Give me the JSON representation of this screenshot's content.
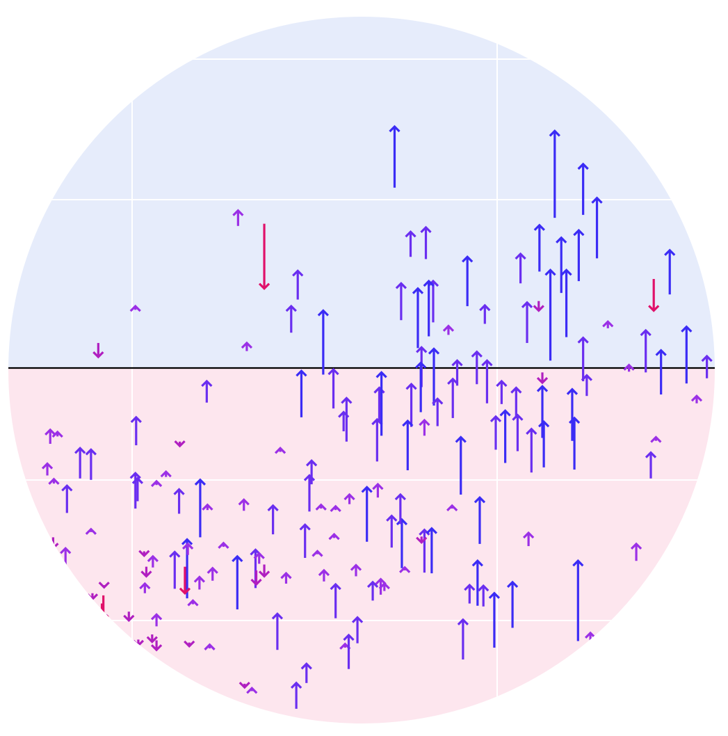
{
  "chart_data": {
    "type": "vector-field",
    "mark": "arrow",
    "title": "",
    "xlabel": "",
    "ylabel": "",
    "grid": true,
    "legend": "none",
    "xlim": [
      0,
      100
    ],
    "ylim": [
      -50,
      50
    ],
    "baseline_y": 0,
    "colors": {
      "upper_region": "#e6ecfb",
      "lower_region": "#fde6ee",
      "grid": "#ffffff",
      "baseline": "#000000",
      "arrow_up_long": "#3b2cf5",
      "arrow_up_mid": "#6a2ef0",
      "arrow_up_short": "#9b30e6",
      "arrow_down_short": "#b01fc0",
      "arrow_down_long": "#e0116a"
    },
    "arrows": [
      {
        "x": 54.2,
        "y": 24.5,
        "dy": 8.3
      },
      {
        "x": 76.2,
        "y": 20.4,
        "dy": 11.8
      },
      {
        "x": 80.1,
        "y": 20.8,
        "dy": 6.9
      },
      {
        "x": 82.0,
        "y": 14.9,
        "dy": 8.2
      },
      {
        "x": 32.7,
        "y": 19.3,
        "dy": 2.1
      },
      {
        "x": 36.3,
        "y": 19.6,
        "dy": -8.8
      },
      {
        "x": 40.9,
        "y": 9.3,
        "dy": 3.9
      },
      {
        "x": 56.4,
        "y": 15.1,
        "dy": 3.4
      },
      {
        "x": 58.5,
        "y": 14.8,
        "dy": 4.3
      },
      {
        "x": 55.1,
        "y": 6.5,
        "dy": 5.0
      },
      {
        "x": 59.5,
        "y": 6.2,
        "dy": 5.6
      },
      {
        "x": 64.2,
        "y": 8.4,
        "dy": 6.7
      },
      {
        "x": 71.5,
        "y": 11.5,
        "dy": 4.0
      },
      {
        "x": 74.1,
        "y": 13.1,
        "dy": 6.3
      },
      {
        "x": 77.1,
        "y": 10.2,
        "dy": 7.5
      },
      {
        "x": 79.5,
        "y": 11.8,
        "dy": 6.9
      },
      {
        "x": 92.0,
        "y": 10.0,
        "dy": 6.0
      },
      {
        "x": 89.8,
        "y": 12.1,
        "dy": -4.3
      },
      {
        "x": 40.0,
        "y": 4.8,
        "dy": 3.6
      },
      {
        "x": 44.4,
        "y": -0.9,
        "dy": 8.7
      },
      {
        "x": 57.4,
        "y": 2.7,
        "dy": 8.1
      },
      {
        "x": 58.9,
        "y": 4.3,
        "dy": 7.5
      },
      {
        "x": 66.6,
        "y": 6.0,
        "dy": 2.5
      },
      {
        "x": 72.4,
        "y": 3.4,
        "dy": 5.5
      },
      {
        "x": 75.6,
        "y": 1.0,
        "dy": 12.3
      },
      {
        "x": 77.8,
        "y": 4.2,
        "dy": 9.1
      },
      {
        "x": 80.1,
        "y": -1.8,
        "dy": 5.9
      },
      {
        "x": 88.7,
        "y": -0.6,
        "dy": 5.7
      },
      {
        "x": 90.8,
        "y": -3.6,
        "dy": 6.0
      },
      {
        "x": 94.3,
        "y": -2.1,
        "dy": 7.7
      },
      {
        "x": 97.1,
        "y": -1.4,
        "dy": 3.0
      },
      {
        "x": 61.6,
        "y": 4.5,
        "dy": 1.2
      },
      {
        "x": 83.5,
        "y": 5.4,
        "dy": 0.9
      },
      {
        "x": 86.4,
        "y": -0.5,
        "dy": 0.9
      },
      {
        "x": 33.9,
        "y": 2.3,
        "dy": 1.1
      },
      {
        "x": 18.6,
        "y": 7.9,
        "dy": 0.5
      },
      {
        "x": 13.5,
        "y": 3.4,
        "dy": -1.9
      },
      {
        "x": 74.0,
        "y": 9.1,
        "dy": -1.3
      },
      {
        "x": 74.5,
        "y": -0.6,
        "dy": -1.4
      },
      {
        "x": 57.9,
        "y": -2.6,
        "dy": 5.4
      },
      {
        "x": 59.6,
        "y": -5.1,
        "dy": 7.7
      },
      {
        "x": 62.8,
        "y": -2.4,
        "dy": 3.4
      },
      {
        "x": 65.5,
        "y": -2.2,
        "dy": 4.4
      },
      {
        "x": 66.9,
        "y": -4.8,
        "dy": 5.8
      },
      {
        "x": 28.4,
        "y": -4.7,
        "dy": 2.9
      },
      {
        "x": 41.4,
        "y": -6.7,
        "dy": 6.3
      },
      {
        "x": 45.8,
        "y": -5.5,
        "dy": 5.3
      },
      {
        "x": 47.2,
        "y": -8.6,
        "dy": 2.6
      },
      {
        "x": 52.1,
        "y": -7.2,
        "dy": 4.5
      },
      {
        "x": 56.5,
        "y": -8.0,
        "dy": 5.8
      },
      {
        "x": 57.8,
        "y": -6.0,
        "dy": 6.7
      },
      {
        "x": 60.1,
        "y": -7.9,
        "dy": 3.7
      },
      {
        "x": 62.2,
        "y": -6.8,
        "dy": 5.3
      },
      {
        "x": 68.9,
        "y": -4.9,
        "dy": 3.1
      },
      {
        "x": 70.9,
        "y": -6.8,
        "dy": 4.1
      },
      {
        "x": 74.5,
        "y": -9.5,
        "dy": 7.0
      },
      {
        "x": 78.6,
        "y": -9.9,
        "dy": 7.0
      },
      {
        "x": 80.6,
        "y": -3.8,
        "dy": 2.8
      },
      {
        "x": 95.7,
        "y": -4.8,
        "dy": 1.0
      },
      {
        "x": 58.3,
        "y": -9.2,
        "dy": 2.1
      },
      {
        "x": 68.1,
        "y": -11.1,
        "dy": 4.5
      },
      {
        "x": 71.1,
        "y": -11.3,
        "dy": 4.9
      },
      {
        "x": 69.4,
        "y": -12.9,
        "dy": 7.1
      },
      {
        "x": 73.0,
        "y": -14.2,
        "dy": 5.9
      },
      {
        "x": 74.7,
        "y": -13.5,
        "dy": 6.2
      },
      {
        "x": 78.9,
        "y": -13.8,
        "dy": 7.0
      },
      {
        "x": 63.3,
        "y": -17.2,
        "dy": 7.8
      },
      {
        "x": 89.4,
        "y": -15.0,
        "dy": 3.5
      },
      {
        "x": 90.1,
        "y": -9.9,
        "dy": 0.5
      },
      {
        "x": 51.8,
        "y": -12.7,
        "dy": 5.7
      },
      {
        "x": 52.4,
        "y": -9.2,
        "dy": 8.6
      },
      {
        "x": 56.0,
        "y": -13.9,
        "dy": 6.7
      },
      {
        "x": 47.6,
        "y": -10.0,
        "dy": 5.9
      },
      {
        "x": 42.8,
        "y": -15.8,
        "dy": 3.2
      },
      {
        "x": 6.9,
        "y": -10.3,
        "dy": 1.9
      },
      {
        "x": 7.9,
        "y": -9.3,
        "dy": 0.6
      },
      {
        "x": 11.0,
        "y": -15.0,
        "dy": 4.1
      },
      {
        "x": 12.5,
        "y": -15.2,
        "dy": 4.1
      },
      {
        "x": 18.7,
        "y": -10.5,
        "dy": 3.8
      },
      {
        "x": 18.6,
        "y": -19.1,
        "dy": 4.8
      },
      {
        "x": 6.5,
        "y": -14.6,
        "dy": 1.6
      },
      {
        "x": 7.4,
        "y": -15.7,
        "dy": 0.6
      },
      {
        "x": 9.2,
        "y": -19.7,
        "dy": 3.7
      },
      {
        "x": 18.9,
        "y": -18.1,
        "dy": 3.1
      },
      {
        "x": 21.5,
        "y": -15.9,
        "dy": 0.5
      },
      {
        "x": 22.8,
        "y": -14.8,
        "dy": 0.7
      },
      {
        "x": 24.7,
        "y": -10.0,
        "dy": -0.6
      },
      {
        "x": 38.5,
        "y": -11.4,
        "dy": 0.5
      },
      {
        "x": 27.5,
        "y": -23.0,
        "dy": 7.8
      },
      {
        "x": 24.6,
        "y": -19.8,
        "dy": 3.3
      },
      {
        "x": 28.5,
        "y": -19.3,
        "dy": 0.7
      },
      {
        "x": 33.5,
        "y": -19.4,
        "dy": 1.5
      },
      {
        "x": 37.5,
        "y": -22.6,
        "dy": 3.9
      },
      {
        "x": 42.5,
        "y": -19.5,
        "dy": 4.9
      },
      {
        "x": 44.1,
        "y": -19.1,
        "dy": 0.5
      },
      {
        "x": 46.1,
        "y": -19.3,
        "dy": 0.5
      },
      {
        "x": 48.0,
        "y": -18.5,
        "dy": 1.3
      },
      {
        "x": 50.4,
        "y": -23.6,
        "dy": 7.4
      },
      {
        "x": 51.9,
        "y": -17.6,
        "dy": 1.8
      },
      {
        "x": 53.8,
        "y": -24.4,
        "dy": 4.3
      },
      {
        "x": 55.2,
        "y": -27.2,
        "dy": 6.6
      },
      {
        "x": 55.0,
        "y": -21.2,
        "dy": 4.0
      },
      {
        "x": 58.3,
        "y": -27.8,
        "dy": 5.8
      },
      {
        "x": 59.3,
        "y": -27.9,
        "dy": 6.1
      },
      {
        "x": 62.1,
        "y": -19.1,
        "dy": 0.4
      },
      {
        "x": 65.9,
        "y": -23.9,
        "dy": 6.3
      },
      {
        "x": 72.6,
        "y": -24.2,
        "dy": 1.8
      },
      {
        "x": 87.4,
        "y": -26.2,
        "dy": 2.3
      },
      {
        "x": 9.0,
        "y": -26.9,
        "dy": 2.4
      },
      {
        "x": 12.5,
        "y": -22.3,
        "dy": 0.4
      },
      {
        "x": 7.3,
        "y": -23.0,
        "dy": -1.5
      },
      {
        "x": 21.0,
        "y": -27.1,
        "dy": 1.5
      },
      {
        "x": 20.1,
        "y": -27.0,
        "dy": -1.3
      },
      {
        "x": 25.7,
        "y": -31.3,
        "dy": 8.0
      },
      {
        "x": 25.8,
        "y": -25.4,
        "dy": 1.5
      },
      {
        "x": 24.0,
        "y": -30.0,
        "dy": 5.0
      },
      {
        "x": 27.4,
        "y": -30.1,
        "dy": 1.7
      },
      {
        "x": 29.2,
        "y": -28.9,
        "dy": 1.7
      },
      {
        "x": 30.7,
        "y": -24.3,
        "dy": 0.5
      },
      {
        "x": 32.6,
        "y": -32.8,
        "dy": 7.2
      },
      {
        "x": 35.1,
        "y": -29.9,
        "dy": 5.2
      },
      {
        "x": 35.6,
        "y": -26.6,
        "dy": 1.4
      },
      {
        "x": 35.2,
        "y": -27.5,
        "dy": -1.9
      },
      {
        "x": 39.3,
        "y": -29.3,
        "dy": 1.4
      },
      {
        "x": 41.9,
        "y": -25.8,
        "dy": 4.5
      },
      {
        "x": 43.6,
        "y": -25.3,
        "dy": 0.4
      },
      {
        "x": 44.5,
        "y": -29.0,
        "dy": 1.5
      },
      {
        "x": 45.9,
        "y": -23.1,
        "dy": 0.5
      },
      {
        "x": 48.9,
        "y": -28.3,
        "dy": 1.5
      },
      {
        "x": 51.2,
        "y": -31.6,
        "dy": 2.5
      },
      {
        "x": 52.3,
        "y": -30.8,
        "dy": 2.1
      },
      {
        "x": 52.8,
        "y": -30.3,
        "dy": 1.0
      },
      {
        "x": 55.6,
        "y": -27.5,
        "dy": 0.4
      },
      {
        "x": 57.9,
        "y": -22.9,
        "dy": -0.8
      },
      {
        "x": 64.5,
        "y": -32.0,
        "dy": 2.5
      },
      {
        "x": 65.6,
        "y": -32.3,
        "dy": 6.1
      },
      {
        "x": 66.4,
        "y": -32.4,
        "dy": 2.8
      },
      {
        "x": 70.4,
        "y": -35.3,
        "dy": 6.2
      },
      {
        "x": 79.4,
        "y": -37.1,
        "dy": 10.9
      },
      {
        "x": 19.9,
        "y": -30.6,
        "dy": 1.3
      },
      {
        "x": 21.5,
        "y": -35.1,
        "dy": 1.6
      },
      {
        "x": 19.8,
        "y": -24.9,
        "dy": -0.6
      },
      {
        "x": 16.6,
        "y": -36.2,
        "dy": -1.2
      },
      {
        "x": 14.3,
        "y": -29.5,
        "dy": -0.3
      },
      {
        "x": 14.1,
        "y": -32.6,
        "dy": -1.6
      },
      {
        "x": 12.7,
        "y": -30.6,
        "dy": -0.8
      },
      {
        "x": 11.5,
        "y": -35.5,
        "dy": 0.4
      },
      {
        "x": 19.0,
        "y": -36.9,
        "dy": -0.8
      },
      {
        "x": 20.9,
        "y": -36.2,
        "dy": -1.0
      },
      {
        "x": 21.5,
        "y": -37.0,
        "dy": -1.3
      },
      {
        "x": 18.9,
        "y": -38.3,
        "dy": -0.4
      },
      {
        "x": 26.0,
        "y": -37.3,
        "dy": -0.5
      },
      {
        "x": 28.8,
        "y": -38.1,
        "dy": 0.5
      },
      {
        "x": 26.5,
        "y": -32.1,
        "dy": 0.5
      },
      {
        "x": 14.2,
        "y": -30.9,
        "dy": -3.4
      },
      {
        "x": 25.4,
        "y": -27.0,
        "dy": -3.6
      },
      {
        "x": 36.3,
        "y": -26.7,
        "dy": -1.6
      },
      {
        "x": 38.1,
        "y": -38.3,
        "dy": 4.9
      },
      {
        "x": 46.1,
        "y": -34.0,
        "dy": 4.6
      },
      {
        "x": 47.4,
        "y": -38.0,
        "dy": 0.5
      },
      {
        "x": 49.1,
        "y": -37.4,
        "dy": 3.5
      },
      {
        "x": 47.9,
        "y": -40.9,
        "dy": 4.6
      },
      {
        "x": 63.6,
        "y": -39.6,
        "dy": 5.4
      },
      {
        "x": 67.9,
        "y": -38.0,
        "dy": 7.4
      },
      {
        "x": 81.1,
        "y": -37.5,
        "dy": 1.5
      },
      {
        "x": 14.0,
        "y": -32.0,
        "dy": -4.9
      },
      {
        "x": 20.0,
        "y": -41.6,
        "dy": -0.5
      },
      {
        "x": 33.6,
        "y": -42.9,
        "dy": -0.5
      },
      {
        "x": 34.6,
        "y": -43.9,
        "dy": 0.4
      },
      {
        "x": 42.1,
        "y": -42.8,
        "dy": 2.6
      },
      {
        "x": 40.7,
        "y": -46.3,
        "dy": 3.5
      },
      {
        "x": 18.9,
        "y": -40.1,
        "dy": -1.0
      },
      {
        "x": 17.7,
        "y": -33.1,
        "dy": -1.2
      }
    ]
  }
}
